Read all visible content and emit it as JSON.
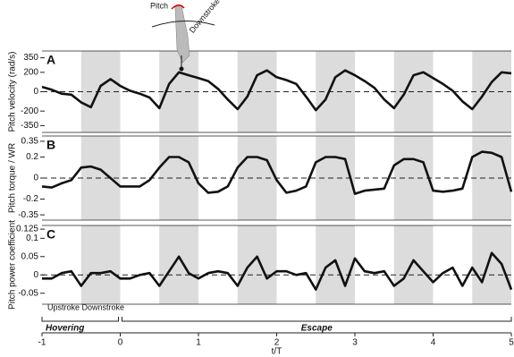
{
  "chart_data": [
    {
      "type": "line",
      "title": "A",
      "ylabel": "Pitch velocity (rad/s)",
      "annotations": [
        "Pitch",
        "Downstroke"
      ],
      "x": [
        -1,
        -0.875,
        -0.75,
        -0.625,
        -0.5,
        -0.375,
        -0.25,
        -0.125,
        0,
        0.125,
        0.25,
        0.375,
        0.5,
        0.625,
        0.75,
        0.875,
        1,
        1.125,
        1.25,
        1.375,
        1.5,
        1.625,
        1.75,
        1.875,
        2,
        2.125,
        2.25,
        2.375,
        2.5,
        2.625,
        2.75,
        2.875,
        3,
        3.125,
        3.25,
        3.375,
        3.5,
        3.625,
        3.75,
        3.875,
        4,
        4.125,
        4.25,
        4.375,
        4.5,
        4.625,
        4.75,
        4.875,
        5
      ],
      "series": [
        {
          "color": "#111111",
          "values": [
            50,
            20,
            -20,
            -30,
            -110,
            -160,
            60,
            130,
            60,
            10,
            -20,
            -60,
            -170,
            80,
            200,
            170,
            140,
            110,
            30,
            -80,
            -180,
            -50,
            170,
            220,
            150,
            120,
            80,
            -50,
            -190,
            -80,
            150,
            220,
            170,
            110,
            40,
            -80,
            -170,
            -30,
            170,
            200,
            140,
            80,
            10,
            -100,
            -180,
            -50,
            100,
            200,
            190
          ]
        }
      ],
      "shaded": [
        [
          -0.5,
          0
        ],
        [
          0.5,
          1
        ],
        [
          1.5,
          2
        ],
        [
          2.5,
          3
        ],
        [
          3.5,
          4
        ],
        [
          4.5,
          5
        ]
      ],
      "xlim": [
        -1,
        5
      ],
      "ylim": [
        -420,
        420
      ],
      "yticks": [
        350,
        200,
        0,
        -200,
        -350
      ],
      "zero_line": true
    },
    {
      "type": "line",
      "title": "B",
      "ylabel": "Pitch torque / WR",
      "x": [
        -1,
        -0.875,
        -0.75,
        -0.625,
        -0.5,
        -0.375,
        -0.25,
        -0.125,
        0,
        0.125,
        0.25,
        0.375,
        0.5,
        0.625,
        0.75,
        0.875,
        1,
        1.125,
        1.25,
        1.375,
        1.5,
        1.625,
        1.75,
        1.875,
        2,
        2.125,
        2.25,
        2.375,
        2.5,
        2.625,
        2.75,
        2.875,
        3,
        3.125,
        3.25,
        3.375,
        3.5,
        3.625,
        3.75,
        3.875,
        4,
        4.125,
        4.25,
        4.375,
        4.5,
        4.625,
        4.75,
        4.875,
        5
      ],
      "series": [
        {
          "color": "#111111",
          "values": [
            -0.08,
            -0.09,
            -0.05,
            -0.02,
            0.1,
            0.11,
            0.08,
            0,
            -0.08,
            -0.08,
            -0.08,
            -0.02,
            0.1,
            0.2,
            0.2,
            0.15,
            -0.05,
            -0.14,
            -0.13,
            -0.08,
            0.1,
            0.2,
            0.2,
            0.17,
            -0.02,
            -0.14,
            -0.12,
            -0.08,
            0.15,
            0.2,
            0.2,
            0.18,
            -0.15,
            -0.12,
            -0.11,
            -0.1,
            0.12,
            0.18,
            0.18,
            0.15,
            -0.12,
            -0.13,
            -0.12,
            -0.1,
            0.2,
            0.25,
            0.24,
            0.2,
            -0.13
          ]
        }
      ],
      "shaded": [
        [
          -0.5,
          0
        ],
        [
          0.5,
          1
        ],
        [
          1.5,
          2
        ],
        [
          2.5,
          3
        ],
        [
          3.5,
          4
        ],
        [
          4.5,
          5
        ]
      ],
      "xlim": [
        -1,
        5
      ],
      "ylim": [
        -0.4,
        0.4
      ],
      "yticks": [
        0.35,
        0.2,
        0,
        -0.2,
        -0.35
      ],
      "zero_line": true
    },
    {
      "type": "line",
      "title": "C",
      "ylabel": "Pitch power coefficient",
      "xlabel": "t/T",
      "stroke_label": "Upstroke Downstroke",
      "phases": [
        {
          "label": "Hovering",
          "range": [
            -1,
            0
          ]
        },
        {
          "label": "Escape",
          "range": [
            0,
            5
          ]
        }
      ],
      "x": [
        -1,
        -0.875,
        -0.75,
        -0.625,
        -0.5,
        -0.375,
        -0.25,
        -0.125,
        0,
        0.125,
        0.25,
        0.375,
        0.5,
        0.625,
        0.75,
        0.875,
        1,
        1.125,
        1.25,
        1.375,
        1.5,
        1.625,
        1.75,
        1.875,
        2,
        2.125,
        2.25,
        2.375,
        2.5,
        2.625,
        2.75,
        2.875,
        3,
        3.125,
        3.25,
        3.375,
        3.5,
        3.625,
        3.75,
        3.875,
        4,
        4.125,
        4.25,
        4.375,
        4.5,
        4.625,
        4.75,
        4.875,
        5
      ],
      "series": [
        {
          "color": "#111111",
          "values": [
            -0.01,
            -0.01,
            0.005,
            0.01,
            -0.03,
            0.005,
            0.005,
            0.01,
            -0.01,
            -0.01,
            0,
            0.005,
            -0.03,
            0.01,
            0.05,
            0.005,
            -0.01,
            0.005,
            0.01,
            0.005,
            -0.03,
            0.02,
            0.05,
            -0.01,
            0.01,
            0.01,
            0,
            0.005,
            -0.04,
            0.02,
            0.04,
            -0.03,
            0.045,
            0.01,
            0.005,
            0.01,
            -0.03,
            -0.01,
            0.04,
            0.01,
            -0.02,
            0.005,
            0.02,
            -0.03,
            0.02,
            -0.02,
            0.06,
            0.03,
            -0.04
          ]
        }
      ],
      "shaded": [
        [
          -0.5,
          0
        ],
        [
          0.5,
          1
        ],
        [
          1.5,
          2
        ],
        [
          2.5,
          3
        ],
        [
          3.5,
          4
        ],
        [
          4.5,
          5
        ]
      ],
      "xlim": [
        -1,
        5
      ],
      "ylim": [
        -0.08,
        0.135
      ],
      "yticks": [
        0.125,
        0.1,
        0.05,
        0,
        -0.05
      ],
      "xticks": [
        -1,
        0,
        1,
        2,
        3,
        4,
        5
      ],
      "zero_line": true
    }
  ]
}
